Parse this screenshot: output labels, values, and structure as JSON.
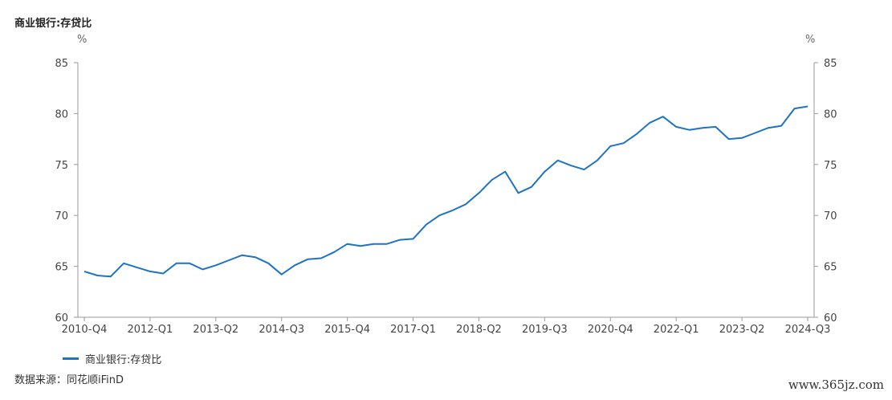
{
  "title": "商业银行:存贷比",
  "unit_left": "%",
  "unit_right": "%",
  "legend_label": "商业银行:存贷比",
  "source": "数据来源：同花顺iFinD",
  "watermark": "www.365jz.com",
  "colors": {
    "series": "#1f73c4",
    "axis": "#9a9a9a"
  },
  "chart_data": {
    "type": "line",
    "title": "商业银行:存贷比",
    "xlabel": "",
    "ylabel": "%",
    "ylim": [
      60,
      85
    ],
    "yticks": [
      60,
      65,
      70,
      75,
      80,
      85
    ],
    "grid": false,
    "legend_position": "bottom-left",
    "x_tick_labels": [
      "2010-Q4",
      "2012-Q1",
      "2013-Q2",
      "2014-Q3",
      "2015-Q4",
      "2017-Q1",
      "2018-Q2",
      "2019-Q3",
      "2020-Q4",
      "2022-Q1",
      "2023-Q2",
      "2024-Q3"
    ],
    "x": [
      "2010-Q4",
      "2011-Q1",
      "2011-Q2",
      "2011-Q3",
      "2011-Q4",
      "2012-Q1",
      "2012-Q2",
      "2012-Q3",
      "2012-Q4",
      "2013-Q1",
      "2013-Q2",
      "2013-Q3",
      "2013-Q4",
      "2014-Q1",
      "2014-Q2",
      "2014-Q3",
      "2014-Q4",
      "2015-Q1",
      "2015-Q2",
      "2015-Q3",
      "2015-Q4",
      "2016-Q1",
      "2016-Q2",
      "2016-Q3",
      "2016-Q4",
      "2017-Q1",
      "2017-Q2",
      "2017-Q3",
      "2017-Q4",
      "2018-Q1",
      "2018-Q2",
      "2018-Q3",
      "2018-Q4",
      "2019-Q1",
      "2019-Q2",
      "2019-Q3",
      "2019-Q4",
      "2020-Q1",
      "2020-Q2",
      "2020-Q3",
      "2020-Q4",
      "2021-Q1",
      "2021-Q2",
      "2021-Q3",
      "2021-Q4",
      "2022-Q1",
      "2022-Q2",
      "2022-Q3",
      "2022-Q4",
      "2023-Q1",
      "2023-Q2",
      "2023-Q3",
      "2023-Q4",
      "2024-Q1",
      "2024-Q2",
      "2024-Q3"
    ],
    "series": [
      {
        "name": "商业银行:存贷比",
        "values": [
          64.5,
          64.1,
          64.0,
          65.3,
          64.9,
          64.5,
          64.3,
          65.3,
          65.3,
          64.7,
          65.1,
          65.6,
          66.1,
          65.9,
          65.3,
          64.2,
          65.1,
          65.7,
          65.8,
          66.4,
          67.2,
          67.0,
          67.2,
          67.2,
          67.6,
          67.7,
          69.1,
          70.0,
          70.5,
          71.1,
          72.2,
          73.5,
          74.3,
          72.2,
          72.8,
          74.3,
          75.4,
          74.9,
          74.5,
          75.4,
          76.8,
          77.1,
          78.0,
          79.1,
          79.7,
          78.7,
          78.4,
          78.6,
          78.7,
          77.5,
          77.6,
          78.1,
          78.6,
          78.8,
          80.5,
          80.7
        ]
      }
    ]
  }
}
